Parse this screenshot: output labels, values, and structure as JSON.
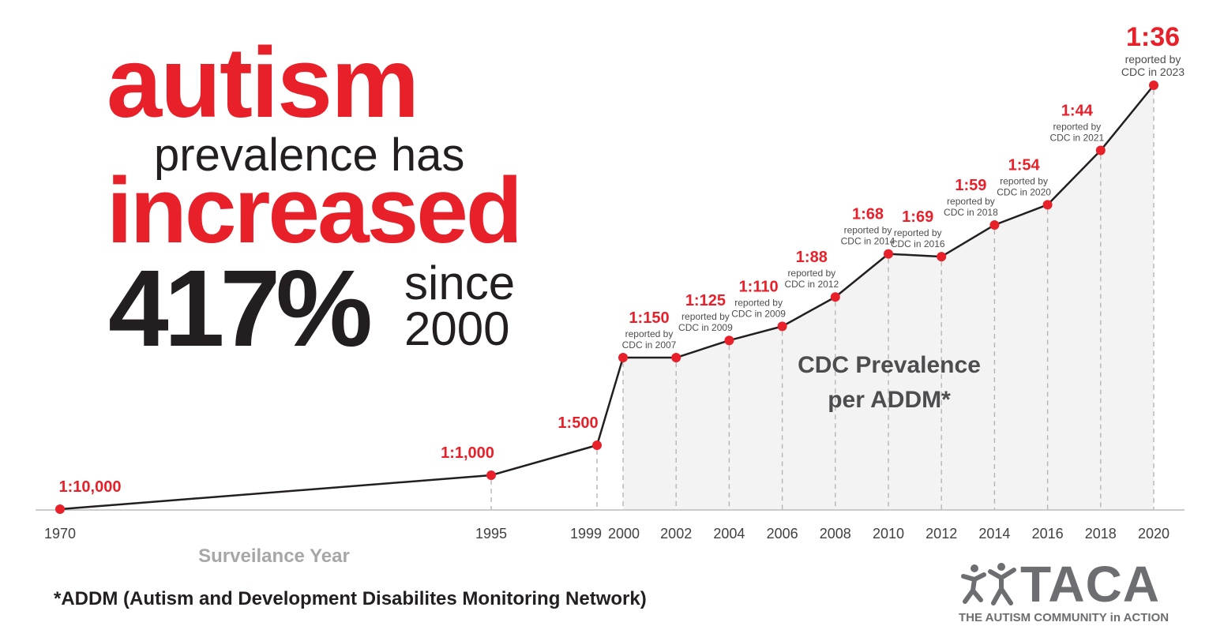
{
  "headline": {
    "line1": "autism",
    "line2": "prevalence has",
    "line3": "increased",
    "line4": "417%",
    "line5a": "since",
    "line5b": "2000"
  },
  "footnote": "*ADDM (Autism and Development Disabilites Monitoring Network)",
  "logo": {
    "word": "TACA",
    "tagline": "THE AUTISM COMMUNITY in ACTION",
    "icon": "people-figures-icon"
  },
  "colors": {
    "accent": "#e8202a",
    "dark": "#231f20",
    "grey": "#9a9a9a",
    "fill": "#f3f3f3",
    "logo": "#6d6e71"
  },
  "chart_data": {
    "type": "line",
    "title": "CDC Prevalence per ADDM*",
    "xlabel": "Surveilance Year",
    "ylabel": "",
    "x_ticks": [
      "1970",
      "1995",
      "1999",
      "2000",
      "2002",
      "2004",
      "2006",
      "2008",
      "2010",
      "2012",
      "2014",
      "2016",
      "2018",
      "2020"
    ],
    "series": [
      {
        "points": [
          {
            "year": 1970,
            "ratio": "1:10,000",
            "value": 10000,
            "note": ""
          },
          {
            "year": 1995,
            "ratio": "1:1,000",
            "value": 1000,
            "note": ""
          },
          {
            "year": 1999,
            "ratio": "1:500",
            "value": 500,
            "note": ""
          },
          {
            "year": 2000,
            "ratio": "1:150",
            "value": 150,
            "note": "reported by|CDC in 2007"
          },
          {
            "year": 2002,
            "ratio": "",
            "value": 150,
            "note": ""
          },
          {
            "year": 2004,
            "ratio": "1:125",
            "value": 125,
            "note": "reported by|CDC in 2009"
          },
          {
            "year": 2006,
            "ratio": "1:110",
            "value": 110,
            "note": "reported by|CDC in 2009"
          },
          {
            "year": 2008,
            "ratio": "1:88",
            "value": 88,
            "note": "reported by|CDC in 2012"
          },
          {
            "year": 2010,
            "ratio": "1:68",
            "value": 68,
            "note": "reported by|CDC in 2014"
          },
          {
            "year": 2012,
            "ratio": "1:69",
            "value": 69,
            "note": "reported by|CDC in 2016"
          },
          {
            "year": 2014,
            "ratio": "1:59",
            "value": 59,
            "note": "reported by|CDC in 2018"
          },
          {
            "year": 2016,
            "ratio": "1:54",
            "value": 54,
            "note": "reported by|CDC in 2020"
          },
          {
            "year": 2018,
            "ratio": "1:44",
            "value": 44,
            "note": "reported by|CDC in 2021"
          },
          {
            "year": 2020,
            "ratio": "1:36",
            "value": 36,
            "note": "reported by|CDC in 2023"
          }
        ]
      }
    ],
    "grid": false,
    "shaded_region_start": 2000
  }
}
